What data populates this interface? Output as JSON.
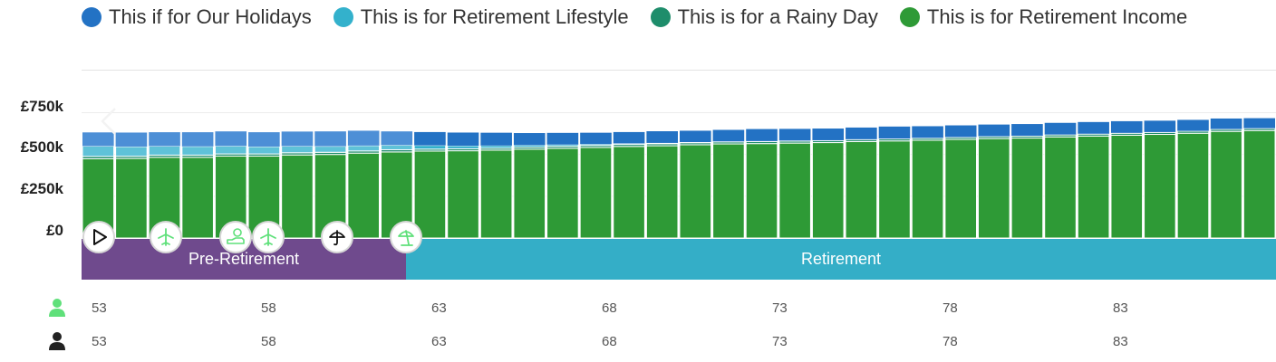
{
  "legend": [
    {
      "label": "This if for Our Holidays",
      "color": "#2372c4"
    },
    {
      "label": "This is for Retirement Lifestyle",
      "color": "#33b1cc"
    },
    {
      "label": "This is for a Rainy Day",
      "color": "#1e8d6b"
    },
    {
      "label": "This is for Retirement Income",
      "color": "#2e9a36"
    }
  ],
  "phases": {
    "pre_retirement": "Pre-Retirement",
    "retirement": "Retirement"
  },
  "timeline_icons": [
    "play-icon",
    "plane-icon",
    "piggy-bank-icon",
    "plane-icon",
    "umbrella-icon",
    "beach-umbrella-icon"
  ],
  "age_rows": [
    {
      "icon": "person-icon",
      "color": "#5fe07a",
      "ages": [
        "53",
        "58",
        "63",
        "68",
        "73",
        "78",
        "83"
      ]
    },
    {
      "icon": "person-icon",
      "color": "#222222",
      "ages": [
        "53",
        "58",
        "63",
        "68",
        "73",
        "78",
        "83"
      ]
    }
  ],
  "chart_data": {
    "type": "bar",
    "stacked": true,
    "y_ticks": [
      "£0",
      "£250k",
      "£500k",
      "£750k"
    ],
    "ylim": [
      0,
      900000
    ],
    "categories": [
      "53",
      "54",
      "55",
      "56",
      "57",
      "58",
      "59",
      "60",
      "61",
      "62",
      "63",
      "64",
      "65",
      "66",
      "67",
      "68",
      "69",
      "70",
      "71",
      "72",
      "73",
      "74",
      "75",
      "76",
      "77",
      "78",
      "79",
      "80",
      "81",
      "82",
      "83",
      "84",
      "85",
      "86",
      "87",
      "88"
    ],
    "series": [
      {
        "name": "This is for Retirement Income",
        "color": "#2e9a36",
        "values": [
          474000,
          476000,
          483000,
          483000,
          490000,
          490000,
          497000,
          500000,
          508000,
          515000,
          520000,
          522000,
          526000,
          532000,
          537000,
          542000,
          548000,
          552000,
          558000,
          563000,
          565000,
          568000,
          571000,
          577000,
          581000,
          585000,
          590000,
          595000,
          598000,
          605000,
          610000,
          615000,
          620000,
          627000,
          638000,
          643000
        ]
      },
      {
        "name": "This is for a Rainy Day",
        "color": "#1e8d6b",
        "values": [
          14000,
          13000,
          13000,
          13000,
          13000,
          13000,
          13000,
          13000,
          13000,
          13000,
          12000,
          12000,
          12000,
          12000,
          12000,
          12000,
          12000,
          12000,
          12000,
          12000,
          12000,
          12000,
          12000,
          12000,
          12000,
          12000,
          12000,
          12000,
          12000,
          12000,
          12000,
          12000,
          12000,
          12000,
          12000,
          12000
        ]
      },
      {
        "name": "This is for Retirement Lifestyle",
        "color": "#33b1cc",
        "values": [
          62000,
          58000,
          54000,
          52000,
          48000,
          44000,
          40000,
          36000,
          32000,
          28000,
          22000,
          18000,
          15000,
          12000,
          10000,
          8000,
          6000,
          5000,
          4000,
          3000,
          3000,
          3000,
          2000,
          2000,
          2000,
          2000,
          2000,
          2000,
          2000,
          2000,
          2000,
          2000,
          2000,
          2000,
          2000,
          2000
        ]
      },
      {
        "name": "This if for Our Holidays",
        "color": "#2372c4",
        "values": [
          82000,
          84000,
          83000,
          85000,
          87000,
          86000,
          87000,
          89000,
          89000,
          82000,
          80000,
          79000,
          77000,
          72000,
          70000,
          68000,
          68000,
          70000,
          68000,
          69000,
          72000,
          70000,
          70000,
          70000,
          72000,
          70000,
          70000,
          70000,
          70000,
          70000,
          70000,
          70000,
          68000,
          66000,
          63000,
          60000
        ]
      }
    ]
  }
}
